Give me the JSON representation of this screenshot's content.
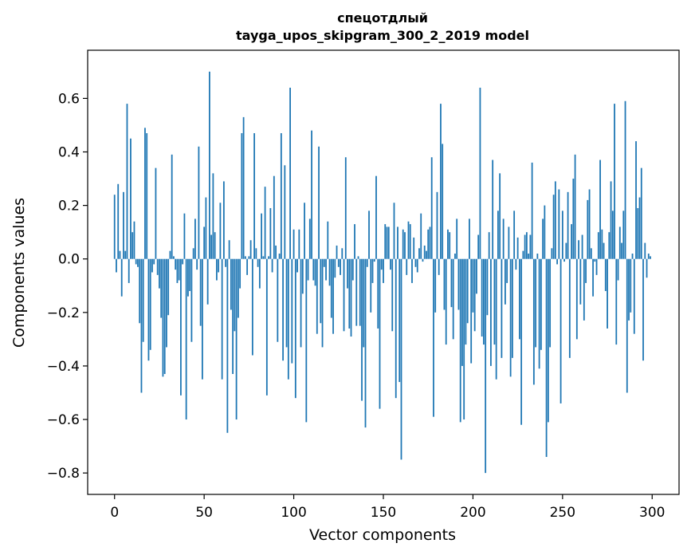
{
  "chart_data": {
    "type": "bar",
    "title": [
      "спецотдлый",
      "tayga_upos_skipgram_300_2_2019 model"
    ],
    "xlabel": "Vector components",
    "ylabel": "Components values",
    "xlim": [
      -15,
      315
    ],
    "ylim": [
      -0.88,
      0.78
    ],
    "xticks": [
      0,
      50,
      100,
      150,
      200,
      250,
      300
    ],
    "xtick_labels": [
      "0",
      "50",
      "100",
      "150",
      "200",
      "250",
      "300"
    ],
    "yticks": [
      -0.8,
      -0.6,
      -0.4,
      -0.2,
      0.0,
      0.2,
      0.4,
      0.6
    ],
    "ytick_labels": [
      "−0.8",
      "−0.6",
      "−0.4",
      "−0.2",
      "0.0",
      "0.2",
      "0.4",
      "0.6"
    ],
    "grid": false,
    "bar_color": "#1f77b4",
    "x": [
      0,
      1,
      2,
      3,
      4,
      5,
      6,
      7,
      8,
      9,
      10,
      11,
      12,
      13,
      14,
      15,
      16,
      17,
      18,
      19,
      20,
      21,
      22,
      23,
      24,
      25,
      26,
      27,
      28,
      29,
      30,
      31,
      32,
      33,
      34,
      35,
      36,
      37,
      38,
      39,
      40,
      41,
      42,
      43,
      44,
      45,
      46,
      47,
      48,
      49,
      50,
      51,
      52,
      53,
      54,
      55,
      56,
      57,
      58,
      59,
      60,
      61,
      62,
      63,
      64,
      65,
      66,
      67,
      68,
      69,
      70,
      71,
      72,
      73,
      74,
      75,
      76,
      77,
      78,
      79,
      80,
      81,
      82,
      83,
      84,
      85,
      86,
      87,
      88,
      89,
      90,
      91,
      92,
      93,
      94,
      95,
      96,
      97,
      98,
      99,
      100,
      101,
      102,
      103,
      104,
      105,
      106,
      107,
      108,
      109,
      110,
      111,
      112,
      113,
      114,
      115,
      116,
      117,
      118,
      119,
      120,
      121,
      122,
      123,
      124,
      125,
      126,
      127,
      128,
      129,
      130,
      131,
      132,
      133,
      134,
      135,
      136,
      137,
      138,
      139,
      140,
      141,
      142,
      143,
      144,
      145,
      146,
      147,
      148,
      149,
      150,
      151,
      152,
      153,
      154,
      155,
      156,
      157,
      158,
      159,
      160,
      161,
      162,
      163,
      164,
      165,
      166,
      167,
      168,
      169,
      170,
      171,
      172,
      173,
      174,
      175,
      176,
      177,
      178,
      179,
      180,
      181,
      182,
      183,
      184,
      185,
      186,
      187,
      188,
      189,
      190,
      191,
      192,
      193,
      194,
      195,
      196,
      197,
      198,
      199,
      200,
      201,
      202,
      203,
      204,
      205,
      206,
      207,
      208,
      209,
      210,
      211,
      212,
      213,
      214,
      215,
      216,
      217,
      218,
      219,
      220,
      221,
      222,
      223,
      224,
      225,
      226,
      227,
      228,
      229,
      230,
      231,
      232,
      233,
      234,
      235,
      236,
      237,
      238,
      239,
      240,
      241,
      242,
      243,
      244,
      245,
      246,
      247,
      248,
      249,
      250,
      251,
      252,
      253,
      254,
      255,
      256,
      257,
      258,
      259,
      260,
      261,
      262,
      263,
      264,
      265,
      266,
      267,
      268,
      269,
      270,
      271,
      272,
      273,
      274,
      275,
      276,
      277,
      278,
      279,
      280,
      281,
      282,
      283,
      284,
      285,
      286,
      287,
      288,
      289,
      290,
      291,
      292,
      293,
      294,
      295,
      296,
      297,
      298,
      299
    ],
    "values": [
      0.24,
      -0.05,
      0.28,
      0.03,
      -0.14,
      0.25,
      0.03,
      0.58,
      -0.09,
      0.45,
      0.1,
      0.14,
      -0.02,
      -0.03,
      -0.24,
      -0.5,
      -0.31,
      0.49,
      0.47,
      -0.38,
      -0.34,
      -0.05,
      -0.02,
      0.34,
      -0.06,
      -0.11,
      -0.22,
      -0.44,
      -0.43,
      -0.33,
      -0.21,
      0.03,
      0.39,
      0.01,
      -0.04,
      -0.09,
      -0.08,
      -0.51,
      -0.02,
      0.17,
      -0.6,
      -0.14,
      -0.12,
      -0.31,
      0.04,
      0.15,
      -0.04,
      0.42,
      -0.25,
      -0.45,
      0.12,
      0.23,
      -0.17,
      0.7,
      0.09,
      0.32,
      0.1,
      -0.08,
      -0.05,
      0.21,
      -0.45,
      0.29,
      -0.03,
      -0.65,
      0.07,
      -0.19,
      -0.43,
      -0.27,
      -0.6,
      -0.22,
      -0.11,
      0.47,
      0.53,
      0.01,
      -0.06,
      0.01,
      0.07,
      -0.36,
      0.47,
      0.04,
      -0.03,
      -0.11,
      0.17,
      0.01,
      0.27,
      -0.51,
      0.01,
      0.19,
      -0.05,
      0.31,
      0.05,
      -0.31,
      0.02,
      0.47,
      -0.38,
      0.35,
      -0.33,
      -0.45,
      0.64,
      -0.39,
      0.11,
      -0.52,
      -0.05,
      0.11,
      -0.33,
      -0.13,
      0.21,
      -0.61,
      -0.08,
      0.15,
      0.48,
      -0.08,
      -0.1,
      -0.28,
      0.42,
      -0.24,
      -0.33,
      -0.03,
      -0.08,
      0.14,
      -0.1,
      -0.22,
      -0.28,
      -0.07,
      0.05,
      -0.03,
      -0.06,
      0.04,
      -0.27,
      0.38,
      -0.11,
      -0.26,
      -0.29,
      -0.08,
      0.13,
      -0.25,
      0.01,
      -0.25,
      -0.53,
      -0.33,
      -0.63,
      -0.03,
      0.18,
      -0.2,
      -0.09,
      -0.01,
      0.31,
      -0.26,
      -0.56,
      -0.04,
      -0.09,
      0.13,
      0.12,
      0.12,
      -0.04,
      -0.27,
      0.21,
      -0.52,
      0.12,
      -0.46,
      -0.75,
      0.11,
      0.1,
      -0.06,
      0.14,
      0.13,
      -0.09,
      0.08,
      -0.03,
      -0.05,
      0.04,
      0.17,
      -0.01,
      0.05,
      0.03,
      0.11,
      0.12,
      0.38,
      -0.59,
      -0.2,
      0.25,
      -0.06,
      0.58,
      0.43,
      -0.19,
      -0.32,
      0.11,
      0.1,
      -0.18,
      -0.3,
      0.02,
      0.15,
      -0.19,
      -0.61,
      -0.4,
      -0.6,
      -0.32,
      -0.24,
      0.15,
      -0.39,
      -0.2,
      -0.27,
      -0.13,
      0.09,
      0.64,
      -0.29,
      -0.32,
      -0.8,
      -0.21,
      0.1,
      -0.4,
      0.37,
      -0.32,
      -0.45,
      0.18,
      0.32,
      -0.37,
      0.15,
      -0.17,
      -0.09,
      0.12,
      -0.44,
      -0.37,
      0.18,
      -0.04,
      0.08,
      -0.3,
      -0.62,
      0.03,
      0.09,
      0.1,
      0.02,
      0.09,
      0.36,
      -0.47,
      -0.33,
      0.02,
      -0.41,
      -0.34,
      0.15,
      0.2,
      -0.74,
      -0.61,
      -0.33,
      0.04,
      0.24,
      0.29,
      -0.02,
      0.26,
      -0.54,
      0.18,
      -0.01,
      0.06,
      0.25,
      -0.37,
      0.13,
      0.3,
      0.39,
      -0.3,
      0.07,
      -0.17,
      0.09,
      -0.23,
      -0.09,
      0.22,
      0.26,
      0.04,
      -0.14,
      -0.01,
      -0.06,
      0.1,
      0.37,
      0.11,
      0.06,
      -0.12,
      -0.26,
      0.1,
      0.29,
      0.18,
      0.58,
      -0.32,
      -0.08,
      0.12,
      0.06,
      0.18,
      0.59,
      -0.5,
      -0.23,
      -0.2,
      0.02,
      -0.28,
      0.44,
      0.19,
      0.23,
      0.34,
      -0.38,
      0.06,
      -0.07,
      0.02,
      0.01
    ]
  }
}
